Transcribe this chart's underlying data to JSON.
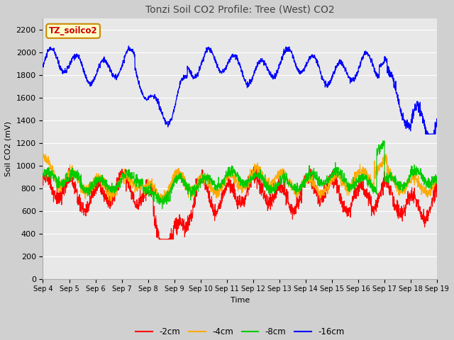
{
  "title": "Tonzi Soil CO2 Profile: Tree (West) CO2",
  "xlabel": "Time",
  "ylabel": "Soil CO2 (mV)",
  "ylim": [
    0,
    2300
  ],
  "yticks": [
    0,
    200,
    400,
    600,
    800,
    1000,
    1200,
    1400,
    1600,
    1800,
    2000,
    2200
  ],
  "x_labels": [
    "Sep 4",
    "Sep 5",
    "Sep 6",
    "Sep 7",
    "Sep 8",
    "Sep 9",
    "Sep 10",
    "Sep 11",
    "Sep 12",
    "Sep 13",
    "Sep 14",
    "Sep 15",
    "Sep 16",
    "Sep 17",
    "Sep 18",
    "Sep 19"
  ],
  "legend_label": "TZ_soilco2",
  "legend_box_color": "#ffffcc",
  "legend_box_edge": "#cc8800",
  "series_labels": [
    "-2cm",
    "-4cm",
    "-8cm",
    "-16cm"
  ],
  "series_colors": [
    "#ff0000",
    "#ffaa00",
    "#00cc00",
    "#0000ff"
  ],
  "plot_bg_color": "#e8e8e8",
  "fig_bg_color": "#d0d0d0",
  "grid_color": "#ffffff",
  "title_color": "#444444",
  "figsize": [
    6.4,
    4.8
  ],
  "dpi": 100
}
